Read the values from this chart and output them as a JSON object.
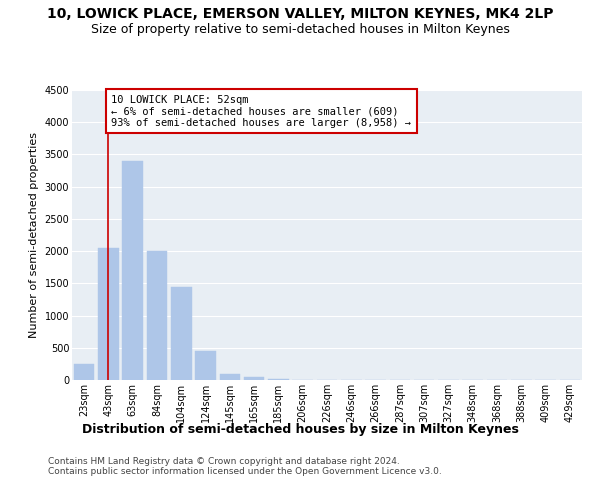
{
  "title": "10, LOWICK PLACE, EMERSON VALLEY, MILTON KEYNES, MK4 2LP",
  "subtitle": "Size of property relative to semi-detached houses in Milton Keynes",
  "xlabel": "Distribution of semi-detached houses by size in Milton Keynes",
  "ylabel": "Number of semi-detached properties",
  "categories": [
    "23sqm",
    "43sqm",
    "63sqm",
    "84sqm",
    "104sqm",
    "124sqm",
    "145sqm",
    "165sqm",
    "185sqm",
    "206sqm",
    "226sqm",
    "246sqm",
    "266sqm",
    "287sqm",
    "307sqm",
    "327sqm",
    "348sqm",
    "368sqm",
    "388sqm",
    "409sqm",
    "429sqm"
  ],
  "values": [
    250,
    2050,
    3400,
    2000,
    1450,
    450,
    100,
    50,
    20,
    0,
    0,
    0,
    0,
    0,
    0,
    0,
    0,
    0,
    0,
    0,
    0
  ],
  "bar_color": "#aec6e8",
  "bar_edge_color": "#aec6e8",
  "vline_x": 1,
  "vline_color": "#cc0000",
  "annotation_text": "10 LOWICK PLACE: 52sqm\n← 6% of semi-detached houses are smaller (609)\n93% of semi-detached houses are larger (8,958) →",
  "annotation_box_color": "#ffffff",
  "annotation_box_edge": "#cc0000",
  "ylim": [
    0,
    4500
  ],
  "yticks": [
    0,
    500,
    1000,
    1500,
    2000,
    2500,
    3000,
    3500,
    4000,
    4500
  ],
  "plot_bg_color": "#e8eef4",
  "footer_line1": "Contains HM Land Registry data © Crown copyright and database right 2024.",
  "footer_line2": "Contains public sector information licensed under the Open Government Licence v3.0.",
  "title_fontsize": 10,
  "subtitle_fontsize": 9,
  "xlabel_fontsize": 9,
  "ylabel_fontsize": 8,
  "tick_fontsize": 7,
  "footer_fontsize": 6.5,
  "annot_fontsize": 7.5
}
